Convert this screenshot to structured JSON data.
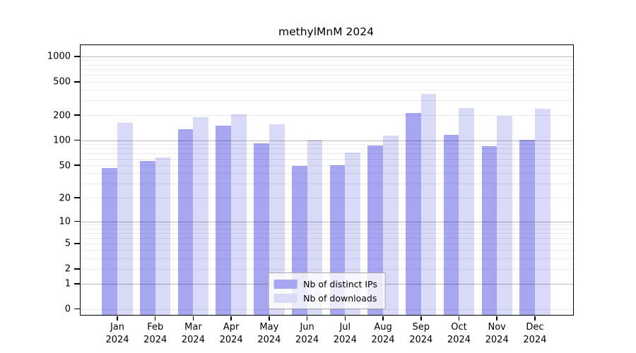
{
  "title": "methylMnM 2024",
  "colors": {
    "distinct_ips_bar": "#a6a6f1",
    "downloads_bar": "#d9d9f8",
    "grid_minor": "rgba(0,0,0,0.075)",
    "grid_major": "rgba(0,0,0,0.27)",
    "axis": "#000000",
    "background": "#ffffff"
  },
  "legend": {
    "items": [
      {
        "label": "Nb of distinct IPs",
        "color": "#a6a6f1"
      },
      {
        "label": "Nb of downloads",
        "color": "#d9d9f8"
      }
    ]
  },
  "chart_data": {
    "type": "bar",
    "title": "methylMnM 2024",
    "year": "2024",
    "months": [
      "Jan",
      "Feb",
      "Mar",
      "Apr",
      "May",
      "Jun",
      "Jul",
      "Aug",
      "Sep",
      "Oct",
      "Nov",
      "Dec"
    ],
    "categories": [
      "Jan 2024",
      "Feb 2024",
      "Mar 2024",
      "Apr 2024",
      "May 2024",
      "Jun 2024",
      "Jul 2024",
      "Aug 2024",
      "Sep 2024",
      "Oct 2024",
      "Nov 2024",
      "Dec 2024"
    ],
    "series": [
      {
        "name": "Nb of distinct IPs",
        "color": "#a6a6f1",
        "values": [
          46,
          56,
          137,
          151,
          92,
          49,
          50,
          86,
          211,
          116,
          85,
          102
        ]
      },
      {
        "name": "Nb of downloads",
        "color": "#d9d9f8",
        "values": [
          161,
          62,
          190,
          206,
          156,
          101,
          72,
          115,
          360,
          241,
          196,
          240
        ]
      }
    ],
    "y_scale": "log1p",
    "y_ticks": [
      0,
      1,
      2,
      5,
      10,
      20,
      50,
      100,
      200,
      500,
      1000
    ],
    "major_gridlines": [
      1,
      10,
      100,
      1000
    ],
    "ylim_top": 1100,
    "grid": true,
    "legend_position": "lower center"
  }
}
